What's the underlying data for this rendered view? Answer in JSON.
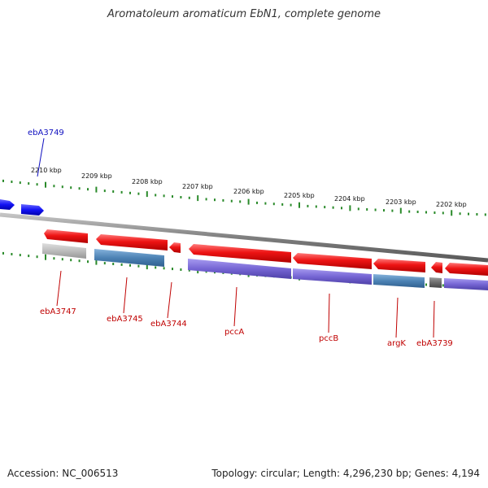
{
  "title": "Aromatoleum aromaticum EbN1, complete genome",
  "footer": {
    "accession": "Accession: NC_006513",
    "summary": "Topology: circular; Length: 4,296,230 bp; Genes: 4,194"
  },
  "colors": {
    "forward_cds": "#1010f0",
    "reverse_cds": "#e81010",
    "label_forward": "#1010c0",
    "label_reverse": "#c00000",
    "tick": "#2a8a2a",
    "backbone": "#8a8a8a",
    "gene_blue": "#4f86b8",
    "gene_purple": "#7b6cd0",
    "gene_gray": "#b8b8b8",
    "gene_darkgray": "#707070"
  },
  "ticks": [
    "2210 kbp",
    "2209 kbp",
    "2208 kbp",
    "2207 kbp",
    "2206 kbp",
    "2205 kbp",
    "2204 kbp",
    "2203 kbp",
    "2202 kbp"
  ],
  "genes": [
    {
      "name": "ebA3749",
      "strand": "forward"
    },
    {
      "name": "ebA3747",
      "strand": "reverse"
    },
    {
      "name": "ebA3745",
      "strand": "reverse"
    },
    {
      "name": "ebA3744",
      "strand": "reverse"
    },
    {
      "name": "pccA",
      "strand": "reverse"
    },
    {
      "name": "pccB",
      "strand": "reverse"
    },
    {
      "name": "argK",
      "strand": "reverse"
    },
    {
      "name": "ebA3739",
      "strand": "reverse"
    }
  ]
}
